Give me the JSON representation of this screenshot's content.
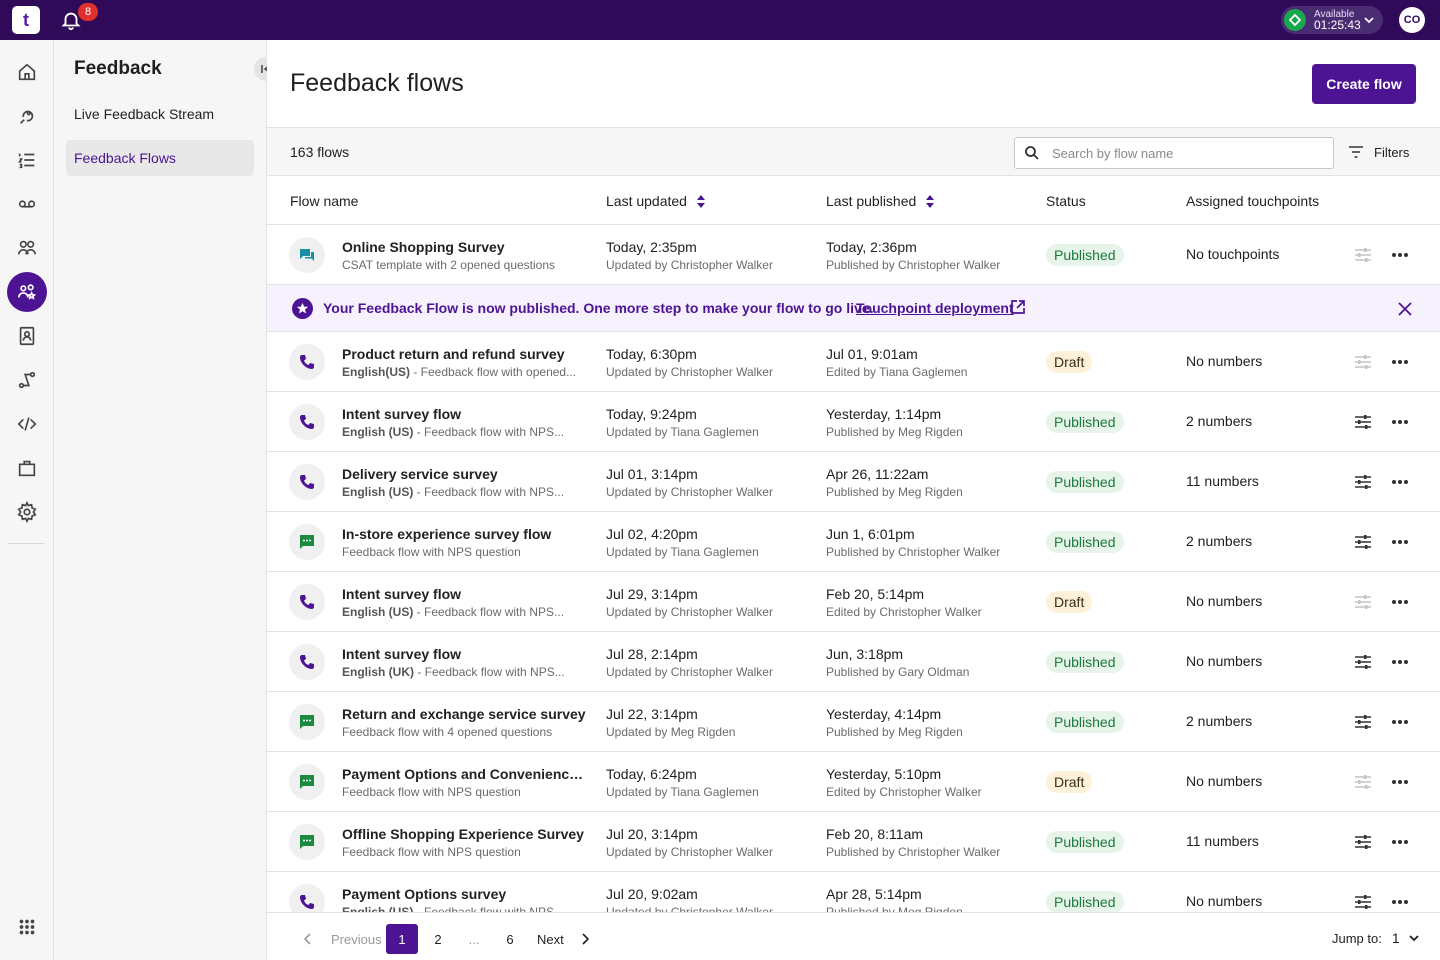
{
  "topbar": {
    "logo": "t",
    "notifications_count": "8",
    "status_label": "Available",
    "status_timer": "01:25:43",
    "avatar_initials": "CO"
  },
  "rail": {
    "icons": [
      "home-icon",
      "feedback-icon",
      "list-icon",
      "voicemail-icon",
      "team-icon",
      "feedback-flows-icon",
      "contacts-icon",
      "routing-icon",
      "code-icon",
      "briefcase-icon",
      "settings-icon",
      "apps-grid-icon"
    ]
  },
  "side": {
    "title": "Feedback",
    "items": [
      {
        "label": "Live Feedback Stream"
      },
      {
        "label": "Feedback Flows"
      }
    ]
  },
  "main": {
    "title": "Feedback flows",
    "create_label": "Create flow",
    "count": "163 flows",
    "search_placeholder": "Search by flow name",
    "filters_label": "Filters"
  },
  "table": {
    "headers": {
      "name": "Flow name",
      "updated": "Last updated",
      "published": "Last published",
      "status": "Status",
      "touchpoints": "Assigned touchpoints"
    },
    "rows": [
      {
        "type": "chat",
        "name": "Online Shopping Survey",
        "sub": "CSAT template with 2 opened questions",
        "updated": "Today, 2:35pm",
        "updated_by": "Updated by Christopher Walker",
        "published": "Today, 2:36pm",
        "published_by": "Published by Christopher Walker",
        "status": "Published",
        "touchpoints": "No touchpoints",
        "tune_active": false
      },
      {
        "type": "phone",
        "name": "Product return and refund survey",
        "sub_bold": "English(US)",
        "sub": " - Feedback flow with opened...",
        "updated": "Today, 6:30pm",
        "updated_by": "Updated by Christopher Walker",
        "published": "Jul 01, 9:01am",
        "published_by": "Edited by Tiana Gaglemen",
        "status": "Draft",
        "touchpoints": "No numbers",
        "tune_active": false
      },
      {
        "type": "phone",
        "name": "Intent survey flow",
        "sub_bold": "English (US)",
        "sub": " - Feedback flow with NPS...",
        "updated": "Today, 9:24pm",
        "updated_by": "Updated by Tiana Gaglemen",
        "published": "Yesterday, 1:14pm",
        "published_by": "Published by Meg Rigden",
        "status": "Published",
        "touchpoints": "2 numbers",
        "tune_active": true
      },
      {
        "type": "phone",
        "name": "Delivery service survey",
        "sub_bold": "English (US)",
        "sub": " - Feedback flow with NPS...",
        "updated": "Jul 01, 3:14pm",
        "updated_by": "Updated by Christopher Walker",
        "published": "Apr 26, 11:22am",
        "published_by": "Published by Meg Rigden",
        "status": "Published",
        "touchpoints": "11 numbers",
        "tune_active": true
      },
      {
        "type": "sms",
        "name": "In-store experience survey flow",
        "sub": "Feedback flow with NPS question",
        "updated": "Jul 02, 4:20pm",
        "updated_by": "Updated by Tiana Gaglemen",
        "published": "Jun 1, 6:01pm",
        "published_by": "Published by Christopher Walker",
        "status": "Published",
        "touchpoints": "2 numbers",
        "tune_active": true
      },
      {
        "type": "phone",
        "name": "Intent survey flow",
        "sub_bold": "English (US)",
        "sub": " - Feedback flow with NPS...",
        "updated": "Jul 29, 3:14pm",
        "updated_by": "Updated by Christopher Walker",
        "published": "Feb 20, 5:14pm",
        "published_by": "Edited by Christopher Walker",
        "status": "Draft",
        "touchpoints": "No numbers",
        "tune_active": false
      },
      {
        "type": "phone",
        "name": "Intent survey flow",
        "sub_bold": "English (UK)",
        "sub": " - Feedback flow with NPS...",
        "updated": "Jul 28, 2:14pm",
        "updated_by": "Updated by Christopher Walker",
        "published": "Jun, 3:18pm",
        "published_by": "Published by Gary Oldman",
        "status": "Published",
        "touchpoints": "No numbers",
        "tune_active": true
      },
      {
        "type": "sms",
        "name": "Return and exchange service survey",
        "sub": "Feedback flow with 4 opened questions",
        "updated": "Jul 22, 3:14pm",
        "updated_by": "Updated by Meg Rigden",
        "published": "Yesterday, 4:14pm",
        "published_by": "Published by Meg Rigden",
        "status": "Published",
        "touchpoints": "2 numbers",
        "tune_active": true
      },
      {
        "type": "sms",
        "name": "Payment Options and Convenience S...",
        "sub": "Feedback flow with NPS question",
        "updated": "Today, 6:24pm",
        "updated_by": "Updated by Tiana Gaglemen",
        "published": "Yesterday, 5:10pm",
        "published_by": "Edited by Christopher Walker",
        "status": "Draft",
        "touchpoints": "No numbers",
        "tune_active": false
      },
      {
        "type": "sms",
        "name": "Offline Shopping Experience Survey",
        "sub": "Feedback flow with NPS question",
        "updated": "Jul 20, 3:14pm",
        "updated_by": "Updated by Christopher Walker",
        "published": "Feb 20, 8:11am",
        "published_by": "Published by Christopher Walker",
        "status": "Published",
        "touchpoints": "11 numbers",
        "tune_active": true
      },
      {
        "type": "phone",
        "name": "Payment Options survey",
        "sub_bold": "English (US)",
        "sub": " - Feedback flow with NPS...",
        "updated": "Jul 20, 9:02am",
        "updated_by": "Updated by Christopher Walker",
        "published": "Apr 28, 5:14pm",
        "published_by": "Published by Meg Rigden",
        "status": "Published",
        "touchpoints": "No numbers",
        "tune_active": true
      }
    ]
  },
  "banner": {
    "text": "Your Feedback Flow is now published. One more step to make your flow to go live.",
    "link": "Touchpoint deployment"
  },
  "pagination": {
    "prev": "Previous",
    "pages": [
      "1",
      "2",
      "...",
      "6"
    ],
    "current": "1",
    "next": "Next",
    "jump_label": "Jump to:",
    "jump_value": "1"
  },
  "colors": {
    "brand": "#4c1493",
    "topbar": "#2e0a58",
    "published_bg": "#e6f4ea",
    "draft_bg": "#fdf1dc",
    "chat_icon": "#1a8ea3",
    "sms_icon": "#1b8a3e",
    "phone_icon": "#4c1493"
  }
}
